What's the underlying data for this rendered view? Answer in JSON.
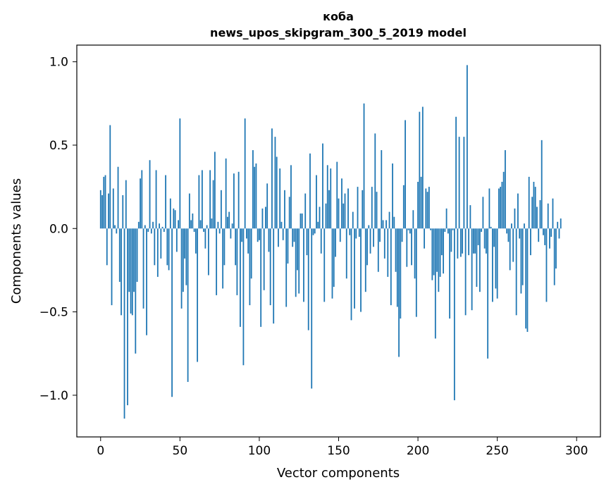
{
  "chart_data": {
    "type": "bar",
    "title": "коба",
    "subtitle": "news_upos_skipgram_300_5_2019 model",
    "xlabel": "Vector components",
    "ylabel": "Components values",
    "xlim": [
      -15,
      315
    ],
    "ylim": [
      -1.25,
      1.1
    ],
    "xticks": [
      0,
      50,
      100,
      150,
      200,
      250,
      300
    ],
    "xtick_labels": [
      "0",
      "50",
      "100",
      "150",
      "200",
      "250",
      "300"
    ],
    "yticks": [
      -1.0,
      -0.5,
      0.0,
      0.5,
      1.0
    ],
    "ytick_labels": [
      "−1.0",
      "−0.5",
      "0.0",
      "0.5",
      "1.0"
    ],
    "bar_color": "#1f77b4",
    "grid": false,
    "values": [
      0.23,
      0.2,
      0.31,
      0.32,
      -0.22,
      0.21,
      0.62,
      -0.46,
      0.24,
      0.02,
      -0.03,
      0.37,
      -0.32,
      -0.52,
      0.2,
      -1.14,
      0.29,
      -1.06,
      -0.38,
      -0.51,
      -0.52,
      -0.38,
      -0.75,
      -0.32,
      0.04,
      0.3,
      0.35,
      -0.48,
      0.02,
      -0.64,
      -0.02,
      0.41,
      -0.03,
      0.04,
      -0.22,
      0.35,
      -0.29,
      0.03,
      -0.18,
      0.01,
      -0.02,
      0.32,
      -0.22,
      -0.25,
      0.18,
      -1.01,
      0.12,
      0.11,
      -0.14,
      0.05,
      0.66,
      -0.48,
      -0.38,
      -0.18,
      -0.34,
      -0.92,
      0.21,
      0.05,
      0.09,
      -0.02,
      -0.15,
      -0.8,
      0.32,
      0.05,
      0.35,
      -0.02,
      -0.12,
      0.02,
      -0.28,
      0.35,
      0.06,
      0.29,
      0.46,
      -0.4,
      0.04,
      -0.03,
      0.23,
      -0.36,
      -0.22,
      0.42,
      0.07,
      0.1,
      -0.06,
      0.03,
      0.33,
      -0.22,
      -0.4,
      0.34,
      -0.59,
      -0.08,
      -0.82,
      0.66,
      -0.06,
      -0.15,
      -0.46,
      -0.3,
      0.47,
      0.37,
      0.39,
      -0.08,
      -0.07,
      -0.59,
      0.12,
      -0.37,
      0.13,
      0.27,
      -0.14,
      -0.46,
      0.6,
      -0.57,
      0.55,
      0.43,
      -0.11,
      0.36,
      0.04,
      -0.07,
      0.23,
      -0.47,
      -0.21,
      0.19,
      0.38,
      -0.11,
      -0.08,
      -0.41,
      -0.25,
      -0.39,
      0.09,
      0.09,
      -0.44,
      0.21,
      -0.16,
      -0.61,
      0.45,
      -0.96,
      -0.04,
      -0.03,
      0.32,
      0.04,
      0.13,
      -0.15,
      0.51,
      -0.44,
      0.15,
      0.38,
      0.23,
      0.36,
      -0.42,
      -0.35,
      -0.17,
      0.4,
      0.18,
      -0.08,
      0.3,
      0.15,
      0.21,
      -0.3,
      0.24,
      -0.04,
      -0.55,
      0.1,
      -0.48,
      -0.06,
      0.25,
      -0.05,
      -0.5,
      0.23,
      0.75,
      -0.38,
      -0.22,
      0.02,
      -0.15,
      0.25,
      -0.11,
      0.57,
      0.22,
      -0.26,
      -0.08,
      0.47,
      0.05,
      -0.18,
      0.05,
      -0.29,
      0.1,
      -0.46,
      0.39,
      0.07,
      -0.26,
      -0.47,
      -0.77,
      -0.54,
      -0.08,
      0.26,
      0.65,
      -0.23,
      -0.01,
      -0.03,
      -0.22,
      0.11,
      -0.3,
      -0.53,
      0.28,
      0.7,
      0.31,
      0.73,
      -0.12,
      0.24,
      0.22,
      0.25,
      -0.01,
      -0.31,
      -0.28,
      -0.66,
      -0.26,
      -0.38,
      -0.29,
      -0.16,
      -0.27,
      -0.02,
      0.12,
      -0.03,
      -0.54,
      -0.14,
      -0.01,
      -1.03,
      0.67,
      -0.18,
      0.55,
      -0.17,
      -0.15,
      0.55,
      -0.52,
      0.98,
      -0.16,
      0.14,
      -0.49,
      -0.15,
      -0.15,
      -0.35,
      -0.1,
      -0.38,
      -0.02,
      0.19,
      -0.12,
      -0.15,
      -0.78,
      0.24,
      0.01,
      -0.44,
      -0.11,
      -0.36,
      -0.42,
      0.24,
      0.25,
      0.28,
      0.34,
      0.47,
      -0.03,
      -0.08,
      -0.25,
      0.03,
      -0.2,
      0.12,
      -0.52,
      0.21,
      -0.06,
      -0.39,
      -0.34,
      0.03,
      -0.6,
      -0.62,
      0.31,
      -0.16,
      0.19,
      0.28,
      0.25,
      0.13,
      -0.08,
      0.17,
      0.53,
      -0.04,
      -0.1,
      -0.44,
      0.15,
      -0.12,
      -0.05,
      0.18,
      -0.34,
      -0.24,
      0.04,
      -0.06,
      0.06
    ]
  }
}
